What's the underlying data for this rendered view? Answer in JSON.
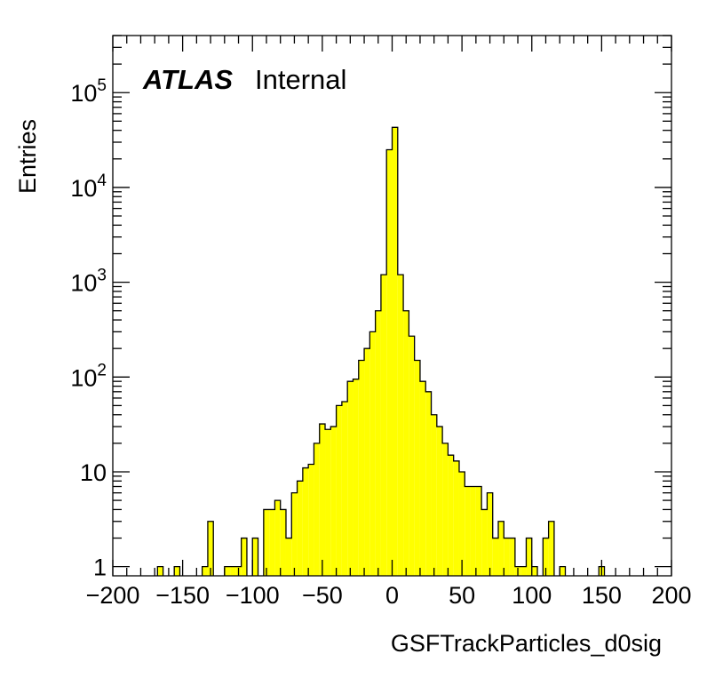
{
  "chart_data": {
    "type": "bar",
    "histogram": true,
    "xlabel": "GSFTrackParticles_d0sig",
    "ylabel": "Entries",
    "annotation": {
      "atlas": "ATLAS",
      "status": "Internal"
    },
    "xlim": [
      -200,
      200
    ],
    "ylim": [
      0.8,
      400000
    ],
    "yscale": "log",
    "grid": false,
    "fill_color": "#ffff00",
    "line_color": "#000000",
    "x_ticks": [
      -200,
      -150,
      -100,
      -50,
      0,
      50,
      100,
      150,
      200
    ],
    "x_tick_labels": [
      "−200",
      "−150",
      "−100",
      "−50",
      "0",
      "50",
      "100",
      "150",
      "200"
    ],
    "y_ticks": [
      1,
      10,
      100,
      1000,
      10000,
      100000
    ],
    "y_tick_labels": [
      {
        "base": "1",
        "exp": ""
      },
      {
        "base": "10",
        "exp": ""
      },
      {
        "base": "10",
        "exp": "2"
      },
      {
        "base": "10",
        "exp": "3"
      },
      {
        "base": "10",
        "exp": "4"
      },
      {
        "base": "10",
        "exp": "5"
      }
    ],
    "bin_width": 4,
    "bins": [
      {
        "x": -166,
        "y": 1
      },
      {
        "x": -154,
        "y": 1
      },
      {
        "x": -134,
        "y": 1
      },
      {
        "x": -130,
        "y": 3
      },
      {
        "x": -118,
        "y": 1
      },
      {
        "x": -114,
        "y": 1
      },
      {
        "x": -110,
        "y": 1
      },
      {
        "x": -106,
        "y": 2
      },
      {
        "x": -98,
        "y": 2
      },
      {
        "x": -90,
        "y": 4
      },
      {
        "x": -86,
        "y": 4
      },
      {
        "x": -82,
        "y": 5
      },
      {
        "x": -78,
        "y": 4
      },
      {
        "x": -74,
        "y": 2
      },
      {
        "x": -70,
        "y": 6
      },
      {
        "x": -66,
        "y": 8
      },
      {
        "x": -62,
        "y": 11
      },
      {
        "x": -58,
        "y": 12
      },
      {
        "x": -54,
        "y": 20
      },
      {
        "x": -50,
        "y": 32
      },
      {
        "x": -46,
        "y": 28
      },
      {
        "x": -42,
        "y": 30
      },
      {
        "x": -38,
        "y": 50
      },
      {
        "x": -34,
        "y": 55
      },
      {
        "x": -30,
        "y": 90
      },
      {
        "x": -26,
        "y": 95
      },
      {
        "x": -22,
        "y": 150
      },
      {
        "x": -18,
        "y": 200
      },
      {
        "x": -14,
        "y": 300
      },
      {
        "x": -10,
        "y": 500
      },
      {
        "x": -6,
        "y": 1200
      },
      {
        "x": -2,
        "y": 25000
      },
      {
        "x": 2,
        "y": 43000
      },
      {
        "x": 6,
        "y": 1200
      },
      {
        "x": 10,
        "y": 500
      },
      {
        "x": 14,
        "y": 270
      },
      {
        "x": 18,
        "y": 150
      },
      {
        "x": 22,
        "y": 90
      },
      {
        "x": 26,
        "y": 70
      },
      {
        "x": 30,
        "y": 40
      },
      {
        "x": 34,
        "y": 30
      },
      {
        "x": 38,
        "y": 20
      },
      {
        "x": 42,
        "y": 15
      },
      {
        "x": 46,
        "y": 13
      },
      {
        "x": 50,
        "y": 10
      },
      {
        "x": 54,
        "y": 7
      },
      {
        "x": 58,
        "y": 7
      },
      {
        "x": 62,
        "y": 7
      },
      {
        "x": 66,
        "y": 4
      },
      {
        "x": 70,
        "y": 6
      },
      {
        "x": 74,
        "y": 2
      },
      {
        "x": 78,
        "y": 3
      },
      {
        "x": 82,
        "y": 2
      },
      {
        "x": 86,
        "y": 2
      },
      {
        "x": 90,
        "y": 1
      },
      {
        "x": 94,
        "y": 1
      },
      {
        "x": 98,
        "y": 2
      },
      {
        "x": 102,
        "y": 1
      },
      {
        "x": 110,
        "y": 2
      },
      {
        "x": 114,
        "y": 3
      },
      {
        "x": 122,
        "y": 1
      },
      {
        "x": 150,
        "y": 1
      }
    ]
  }
}
